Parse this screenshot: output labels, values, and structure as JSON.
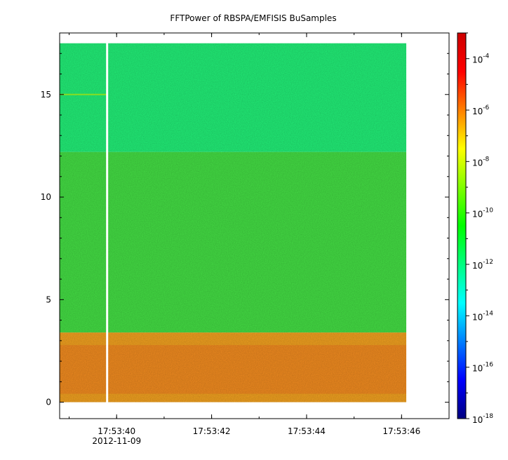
{
  "chart_data": {
    "type": "heatmap",
    "title": "FFTPower of RBSPA/EMFISIS  BuSamples",
    "xlabel": "",
    "ylabel": "",
    "x_axis": {
      "type": "time",
      "range": [
        "17:53:38.8",
        "17:53:47.0"
      ],
      "ticks": [
        {
          "value": "17:53:40",
          "label": "17:53:40",
          "sublabel": "2012-11-09"
        },
        {
          "value": "17:53:42",
          "label": "17:53:42"
        },
        {
          "value": "17:53:44",
          "label": "17:53:44"
        },
        {
          "value": "17:53:46",
          "label": "17:53:46"
        }
      ],
      "date_label": "2012-11-09"
    },
    "y_axis": {
      "range": [
        -0.8,
        18.0
      ],
      "ticks": [
        0,
        5,
        10,
        15
      ]
    },
    "colorbar": {
      "scale": "log",
      "range": [
        1e-18,
        0.001
      ],
      "ticks": [
        {
          "value": -4,
          "base": "10",
          "exp": "-4"
        },
        {
          "value": -6,
          "base": "10",
          "exp": "-6"
        },
        {
          "value": -8,
          "base": "10",
          "exp": "-8"
        },
        {
          "value": -10,
          "base": "10",
          "exp": "-10"
        },
        {
          "value": -12,
          "base": "10",
          "exp": "-12"
        },
        {
          "value": -14,
          "base": "10",
          "exp": "-14"
        },
        {
          "value": -16,
          "base": "10",
          "exp": "-16"
        },
        {
          "value": -18,
          "base": "10",
          "exp": "-18"
        }
      ],
      "colormap": [
        "#00007f",
        "#0000ff",
        "#007fff",
        "#00ffff",
        "#00ff80",
        "#00ff00",
        "#80ff00",
        "#ffff00",
        "#ff8000",
        "#ff0000",
        "#cc0000"
      ]
    },
    "data_extent": {
      "x": [
        "17:53:38.8",
        "17:53:46.1"
      ],
      "y": [
        0,
        17.5
      ]
    },
    "gap": {
      "x": "17:53:39.8"
    },
    "bands": [
      {
        "y": [
          0,
          3.4
        ],
        "log10_power": -7.0,
        "color": "#f0a020"
      },
      {
        "y": [
          3.4,
          12.2
        ],
        "log10_power": -10.5,
        "color": "#44dd44"
      },
      {
        "y": [
          12.2,
          17.5
        ],
        "log10_power": -12.0,
        "color": "#22ee77"
      }
    ],
    "line_feature": {
      "y": 15.0,
      "x": [
        "17:53:38.8",
        "17:53:39.8"
      ],
      "color": "#88dd22"
    }
  }
}
